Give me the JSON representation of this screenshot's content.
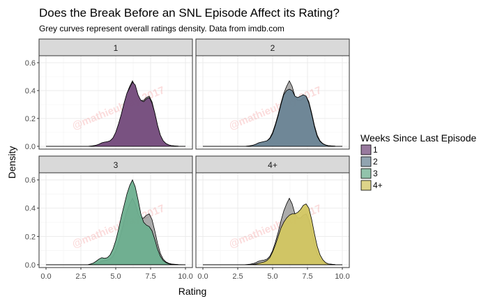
{
  "chart_data": {
    "type": "area",
    "title": "Does the Break Before an SNL Episode Affect its Rating?",
    "subtitle": "Grey curves represent overall ratings density. Data from imdb.com",
    "xlabel": "Rating",
    "ylabel": "Density",
    "xlim": [
      -0.5,
      10.5
    ],
    "ylim": [
      -0.02,
      0.65
    ],
    "x_ticks": [
      0.0,
      2.5,
      5.0,
      7.5,
      10.0
    ],
    "x_tick_labels": [
      "0.0",
      "2.5",
      "5.0",
      "7.5",
      "10.0"
    ],
    "y_ticks": [
      0.0,
      0.2,
      0.4,
      0.6
    ],
    "y_tick_labels": [
      "0.0",
      "0.2",
      "0.4",
      "0.6"
    ],
    "grid": true,
    "legend": {
      "title": "Weeks Since Last Episode",
      "placement": "right",
      "entries": [
        "1",
        "2",
        "3",
        "4+"
      ]
    },
    "watermark": "@mathieubray 2017",
    "overall": {
      "x": [
        0.0,
        3.0,
        3.2,
        3.4,
        3.6,
        3.8,
        4.0,
        4.2,
        4.4,
        4.6,
        4.8,
        5.0,
        5.2,
        5.4,
        5.6,
        5.8,
        6.0,
        6.2,
        6.4,
        6.6,
        6.8,
        7.0,
        7.2,
        7.4,
        7.6,
        7.8,
        8.0,
        8.2,
        8.4,
        8.6,
        8.8,
        9.0,
        9.5,
        10.0
      ],
      "y": [
        0.0,
        0.0,
        0.002,
        0.004,
        0.008,
        0.015,
        0.025,
        0.03,
        0.033,
        0.04,
        0.06,
        0.1,
        0.16,
        0.23,
        0.31,
        0.38,
        0.43,
        0.47,
        0.43,
        0.36,
        0.33,
        0.33,
        0.35,
        0.36,
        0.32,
        0.24,
        0.15,
        0.08,
        0.04,
        0.02,
        0.01,
        0.005,
        0.001,
        0.0
      ]
    },
    "panels": [
      {
        "strip": "1",
        "color": "#764d7e",
        "x": [
          0.0,
          3.0,
          3.2,
          3.4,
          3.6,
          3.8,
          4.0,
          4.2,
          4.4,
          4.6,
          4.8,
          5.0,
          5.2,
          5.4,
          5.6,
          5.8,
          6.0,
          6.2,
          6.4,
          6.6,
          6.8,
          7.0,
          7.2,
          7.4,
          7.6,
          7.8,
          8.0,
          8.2,
          8.4,
          8.6,
          8.8,
          9.0,
          9.5,
          10.0
        ],
        "y": [
          0.0,
          0.0,
          0.002,
          0.004,
          0.008,
          0.015,
          0.025,
          0.03,
          0.033,
          0.04,
          0.06,
          0.1,
          0.16,
          0.23,
          0.31,
          0.38,
          0.42,
          0.46,
          0.44,
          0.37,
          0.33,
          0.32,
          0.34,
          0.35,
          0.31,
          0.24,
          0.15,
          0.08,
          0.04,
          0.02,
          0.01,
          0.005,
          0.001,
          0.0
        ]
      },
      {
        "strip": "2",
        "color": "#6c8596",
        "x": [
          0.0,
          3.0,
          3.2,
          3.4,
          3.6,
          3.8,
          4.0,
          4.2,
          4.4,
          4.6,
          4.8,
          5.0,
          5.2,
          5.4,
          5.6,
          5.8,
          6.0,
          6.2,
          6.4,
          6.6,
          6.8,
          7.0,
          7.2,
          7.4,
          7.6,
          7.8,
          8.0,
          8.2,
          8.4,
          8.6,
          8.8,
          9.0,
          9.5,
          10.0
        ],
        "y": [
          0.0,
          0.0,
          0.002,
          0.004,
          0.008,
          0.015,
          0.025,
          0.03,
          0.035,
          0.04,
          0.055,
          0.09,
          0.15,
          0.22,
          0.3,
          0.37,
          0.4,
          0.41,
          0.4,
          0.36,
          0.35,
          0.36,
          0.37,
          0.36,
          0.31,
          0.23,
          0.14,
          0.07,
          0.035,
          0.018,
          0.009,
          0.004,
          0.001,
          0.0
        ]
      },
      {
        "strip": "3",
        "color": "#6daf8f",
        "x": [
          0.0,
          3.0,
          3.2,
          3.4,
          3.6,
          3.8,
          4.0,
          4.2,
          4.4,
          4.6,
          4.8,
          5.0,
          5.2,
          5.4,
          5.6,
          5.8,
          6.0,
          6.2,
          6.4,
          6.6,
          6.8,
          7.0,
          7.2,
          7.4,
          7.6,
          7.8,
          8.0,
          8.2,
          8.4,
          8.6,
          8.8,
          9.0,
          9.5,
          10.0
        ],
        "y": [
          0.0,
          0.0,
          0.005,
          0.012,
          0.025,
          0.04,
          0.05,
          0.045,
          0.05,
          0.07,
          0.11,
          0.17,
          0.25,
          0.34,
          0.42,
          0.5,
          0.56,
          0.6,
          0.55,
          0.46,
          0.36,
          0.3,
          0.28,
          0.27,
          0.24,
          0.18,
          0.11,
          0.06,
          0.03,
          0.015,
          0.007,
          0.003,
          0.001,
          0.0
        ]
      },
      {
        "strip": "4+",
        "color": "#d2c661",
        "x": [
          0.0,
          3.0,
          3.2,
          3.4,
          3.6,
          3.8,
          4.0,
          4.2,
          4.4,
          4.6,
          4.8,
          5.0,
          5.2,
          5.4,
          5.6,
          5.8,
          6.0,
          6.2,
          6.4,
          6.6,
          6.8,
          7.0,
          7.2,
          7.4,
          7.6,
          7.8,
          8.0,
          8.2,
          8.4,
          8.6,
          8.8,
          9.0,
          9.5,
          10.0
        ],
        "y": [
          0.0,
          0.0,
          0.0,
          0.001,
          0.002,
          0.005,
          0.01,
          0.015,
          0.02,
          0.03,
          0.05,
          0.09,
          0.14,
          0.2,
          0.26,
          0.3,
          0.33,
          0.35,
          0.36,
          0.36,
          0.37,
          0.39,
          0.42,
          0.43,
          0.4,
          0.32,
          0.22,
          0.13,
          0.07,
          0.035,
          0.015,
          0.006,
          0.001,
          0.0
        ]
      }
    ]
  }
}
